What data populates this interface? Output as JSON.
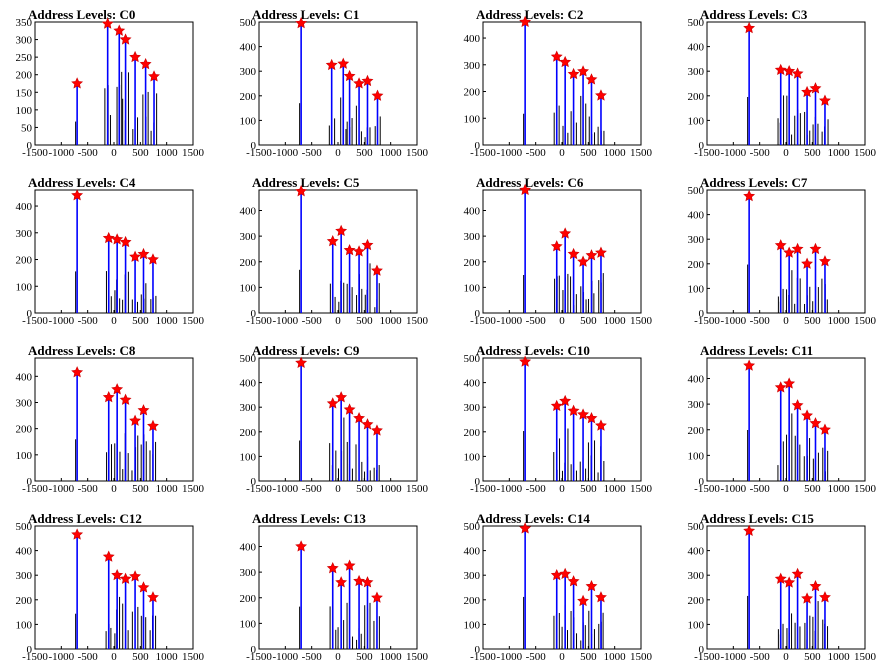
{
  "figure": {
    "colors": {
      "histogram": "#0000ff",
      "peak_marker": "#ff0000",
      "frame": "#000000",
      "minor_spikes": "#000000"
    }
  },
  "chart_data": [
    {
      "type": "histogram",
      "title": "Address Levels: C0",
      "xlim": [
        -1500,
        1500
      ],
      "ylim": [
        0,
        350
      ],
      "xticks": [
        "-1500",
        "-1000",
        "-500",
        "0",
        "500",
        "1000",
        "1500"
      ],
      "yticks": [
        "0",
        "50",
        "100",
        "150",
        "200",
        "250",
        "300",
        "350"
      ],
      "peaks": {
        "x": [
          -700,
          -120,
          100,
          220,
          400,
          600,
          760
        ],
        "y": [
          175,
          345,
          325,
          300,
          250,
          230,
          195
        ]
      }
    },
    {
      "type": "histogram",
      "title": "Address Levels: C1",
      "xlim": [
        -1500,
        1500
      ],
      "ylim": [
        0,
        500
      ],
      "xticks": [
        "-1500",
        "-1000",
        "-500",
        "0",
        "500",
        "1000",
        "1500"
      ],
      "yticks": [
        "0",
        "100",
        "200",
        "300",
        "400",
        "500"
      ],
      "peaks": {
        "x": [
          -700,
          -120,
          100,
          220,
          400,
          560,
          750
        ],
        "y": [
          495,
          325,
          330,
          280,
          250,
          260,
          200
        ]
      }
    },
    {
      "type": "histogram",
      "title": "Address Levels: C2",
      "xlim": [
        -1500,
        1500
      ],
      "ylim": [
        0,
        460
      ],
      "xticks": [
        "-1500",
        "-1000",
        "-500",
        "0",
        "500",
        "1000",
        "1500"
      ],
      "yticks": [
        "0",
        "100",
        "200",
        "300",
        "400"
      ],
      "peaks": {
        "x": [
          -700,
          -100,
          60,
          220,
          400,
          560,
          740
        ],
        "y": [
          460,
          330,
          310,
          265,
          275,
          245,
          185
        ]
      }
    },
    {
      "type": "histogram",
      "title": "Address Levels: C3",
      "xlim": [
        -1500,
        1500
      ],
      "ylim": [
        0,
        500
      ],
      "xticks": [
        "-1500",
        "-1000",
        "-500",
        "0",
        "500",
        "1000",
        "1500"
      ],
      "yticks": [
        "0",
        "100",
        "200",
        "300",
        "400",
        "500"
      ],
      "peaks": {
        "x": [
          -700,
          -100,
          60,
          220,
          400,
          560,
          740
        ],
        "y": [
          475,
          305,
          300,
          290,
          215,
          230,
          180
        ]
      }
    },
    {
      "type": "histogram",
      "title": "Address Levels: C4",
      "xlim": [
        -1500,
        1500
      ],
      "ylim": [
        0,
        460
      ],
      "xticks": [
        "-1500",
        "-1000",
        "-500",
        "0",
        "500",
        "1000",
        "1500"
      ],
      "yticks": [
        "0",
        "100",
        "200",
        "300",
        "400"
      ],
      "peaks": {
        "x": [
          -700,
          -100,
          60,
          220,
          400,
          560,
          740
        ],
        "y": [
          440,
          280,
          275,
          265,
          210,
          220,
          200
        ]
      }
    },
    {
      "type": "histogram",
      "title": "Address Levels: C5",
      "xlim": [
        -1500,
        1500
      ],
      "ylim": [
        0,
        480
      ],
      "xticks": [
        "-1500",
        "-1000",
        "-500",
        "0",
        "500",
        "1000",
        "1500"
      ],
      "yticks": [
        "0",
        "100",
        "200",
        "300",
        "400"
      ],
      "peaks": {
        "x": [
          -700,
          -100,
          60,
          220,
          400,
          560,
          740
        ],
        "y": [
          475,
          280,
          320,
          245,
          240,
          265,
          165
        ]
      }
    },
    {
      "type": "histogram",
      "title": "Address Levels: C6",
      "xlim": [
        -1500,
        1500
      ],
      "ylim": [
        0,
        480
      ],
      "xticks": [
        "-1500",
        "-1000",
        "-500",
        "0",
        "500",
        "1000",
        "1500"
      ],
      "yticks": [
        "0",
        "100",
        "200",
        "300",
        "400"
      ],
      "peaks": {
        "x": [
          -700,
          -100,
          60,
          220,
          400,
          560,
          740
        ],
        "y": [
          480,
          260,
          310,
          230,
          200,
          225,
          235
        ]
      }
    },
    {
      "type": "histogram",
      "title": "Address Levels: C7",
      "xlim": [
        -1500,
        1500
      ],
      "ylim": [
        0,
        500
      ],
      "xticks": [
        "-1500",
        "-1000",
        "-500",
        "0",
        "500",
        "1000",
        "1500"
      ],
      "yticks": [
        "0",
        "100",
        "200",
        "300",
        "400",
        "500"
      ],
      "peaks": {
        "x": [
          -700,
          -100,
          60,
          220,
          400,
          560,
          740
        ],
        "y": [
          475,
          275,
          245,
          260,
          200,
          260,
          210
        ]
      }
    },
    {
      "type": "histogram",
      "title": "Address Levels: C8",
      "xlim": [
        -1500,
        1500
      ],
      "ylim": [
        0,
        470
      ],
      "xticks": [
        "-1500",
        "-1000",
        "-500",
        "0",
        "500",
        "1000",
        "1500"
      ],
      "yticks": [
        "0",
        "100",
        "200",
        "300",
        "400"
      ],
      "peaks": {
        "x": [
          -700,
          -100,
          60,
          220,
          400,
          560,
          740
        ],
        "y": [
          415,
          320,
          350,
          310,
          230,
          270,
          210
        ]
      }
    },
    {
      "type": "histogram",
      "title": "Address Levels: C9",
      "xlim": [
        -1500,
        1500
      ],
      "ylim": [
        0,
        500
      ],
      "xticks": [
        "-1500",
        "-1000",
        "-500",
        "0",
        "500",
        "1000",
        "1500"
      ],
      "yticks": [
        "0",
        "100",
        "200",
        "300",
        "400",
        "500"
      ],
      "peaks": {
        "x": [
          -700,
          -100,
          60,
          220,
          400,
          560,
          740
        ],
        "y": [
          480,
          315,
          340,
          290,
          255,
          230,
          205
        ]
      }
    },
    {
      "type": "histogram",
      "title": "Address Levels: C10",
      "xlim": [
        -1500,
        1500
      ],
      "ylim": [
        0,
        500
      ],
      "xticks": [
        "-1500",
        "-1000",
        "-500",
        "0",
        "500",
        "1000",
        "1500"
      ],
      "yticks": [
        "0",
        "100",
        "200",
        "300",
        "400",
        "500"
      ],
      "peaks": {
        "x": [
          -700,
          -100,
          60,
          220,
          400,
          560,
          740
        ],
        "y": [
          485,
          305,
          325,
          285,
          270,
          255,
          225
        ]
      }
    },
    {
      "type": "histogram",
      "title": "Address Levels: C11",
      "xlim": [
        -1500,
        1500
      ],
      "ylim": [
        0,
        480
      ],
      "xticks": [
        "-1500",
        "-1000",
        "-500",
        "0",
        "500",
        "1000",
        "1500"
      ],
      "yticks": [
        "0",
        "100",
        "200",
        "300",
        "400"
      ],
      "peaks": {
        "x": [
          -700,
          -100,
          60,
          220,
          400,
          560,
          740
        ],
        "y": [
          450,
          365,
          380,
          295,
          255,
          225,
          200
        ]
      }
    },
    {
      "type": "histogram",
      "title": "Address Levels: C12",
      "xlim": [
        -1500,
        1500
      ],
      "ylim": [
        0,
        500
      ],
      "xticks": [
        "-1500",
        "-1000",
        "-500",
        "0",
        "500",
        "1000",
        "1500"
      ],
      "yticks": [
        "0",
        "100",
        "200",
        "300",
        "400",
        "500"
      ],
      "peaks": {
        "x": [
          -700,
          -100,
          60,
          220,
          400,
          560,
          740
        ],
        "y": [
          465,
          375,
          300,
          285,
          295,
          250,
          210
        ]
      }
    },
    {
      "type": "histogram",
      "title": "Address Levels: C13",
      "xlim": [
        -1500,
        1500
      ],
      "ylim": [
        0,
        480
      ],
      "xticks": [
        "-1500",
        "-1000",
        "-500",
        "0",
        "500",
        "1000",
        "1500"
      ],
      "yticks": [
        "0",
        "100",
        "200",
        "300",
        "400"
      ],
      "peaks": {
        "x": [
          -700,
          -100,
          60,
          220,
          400,
          560,
          740
        ],
        "y": [
          400,
          315,
          260,
          325,
          265,
          260,
          200
        ]
      }
    },
    {
      "type": "histogram",
      "title": "Address Levels: C14",
      "xlim": [
        -1500,
        1500
      ],
      "ylim": [
        0,
        500
      ],
      "xticks": [
        "-1500",
        "-1000",
        "-500",
        "0",
        "500",
        "1000",
        "1500"
      ],
      "yticks": [
        "0",
        "100",
        "200",
        "300",
        "400",
        "500"
      ],
      "peaks": {
        "x": [
          -700,
          -100,
          60,
          220,
          400,
          560,
          740
        ],
        "y": [
          490,
          300,
          305,
          275,
          195,
          255,
          210
        ]
      }
    },
    {
      "type": "histogram",
      "title": "Address Levels: C15",
      "xlim": [
        -1500,
        1500
      ],
      "ylim": [
        0,
        500
      ],
      "xticks": [
        "-1500",
        "-1000",
        "-500",
        "0",
        "500",
        "1000",
        "1500"
      ],
      "yticks": [
        "0",
        "100",
        "200",
        "300",
        "400",
        "500"
      ],
      "peaks": {
        "x": [
          -700,
          -100,
          60,
          220,
          400,
          560,
          740
        ],
        "y": [
          480,
          285,
          270,
          305,
          205,
          255,
          210
        ]
      }
    }
  ]
}
